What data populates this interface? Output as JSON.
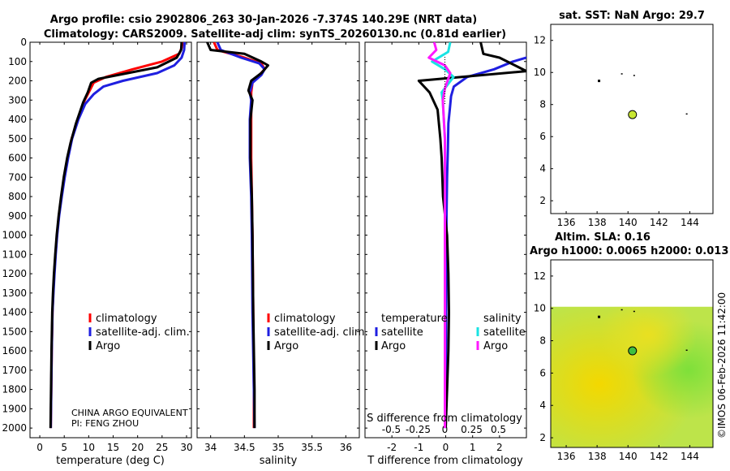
{
  "header": {
    "title_line1": "Argo profile: csio 2902806_263 30-Jan-2026 -7.374S 140.29E (NRT data)",
    "title_line2": "Climatology: CARS2009. Satellite-adj clim: synTS_20260130.nc (0.81d earlier)"
  },
  "credit": "©IMOS 06-Feb-2026 11:42:00",
  "colors": {
    "climatology": "#ff0000",
    "satellite": "#1f1fe0",
    "argo": "#000000",
    "sat_salinity": "#19e3e3",
    "argo_salinity": "#ff19ff"
  },
  "chart_data": [
    {
      "id": "temperature",
      "type": "line",
      "xlabel": "temperature (deg C)",
      "ylabel": "",
      "xlim": [
        -2,
        31
      ],
      "ylim": [
        2050,
        0
      ],
      "xticks": [
        0,
        5,
        10,
        15,
        20,
        25,
        30
      ],
      "yticks": [
        0,
        100,
        200,
        300,
        400,
        500,
        600,
        700,
        800,
        900,
        1000,
        1100,
        1200,
        1300,
        1400,
        1500,
        1600,
        1700,
        1800,
        1900,
        2000
      ],
      "legend": [
        "climatology",
        "satellite-adj. clim.",
        "Argo"
      ],
      "legend_position": "lower-right",
      "note_lines": [
        "CHINA ARGO EQUIVALENT",
        "PI: FENG ZHOU"
      ],
      "series": [
        {
          "name": "climatology",
          "x": [
            29.2,
            29.0,
            28.5,
            25.0,
            19.0,
            13.5,
            11.0,
            10.2,
            9.2,
            7.8,
            6.5,
            5.7,
            5.0,
            4.4,
            3.9,
            3.5,
            3.2,
            2.95,
            2.75,
            2.6,
            2.45,
            2.35,
            2.25
          ],
          "y": [
            0,
            30,
            60,
            100,
            140,
            180,
            210,
            250,
            300,
            400,
            500,
            600,
            700,
            800,
            900,
            1000,
            1100,
            1200,
            1300,
            1400,
            1600,
            1800,
            2000
          ]
        },
        {
          "name": "satellite-adj. clim.",
          "x": [
            29.6,
            29.5,
            29.0,
            27.5,
            24.0,
            17.0,
            13.0,
            11.0,
            9.3,
            7.9,
            6.6,
            5.8,
            5.1,
            4.5,
            3.95,
            3.55,
            3.25,
            3.0,
            2.8,
            2.6,
            2.45,
            2.35,
            2.25
          ],
          "y": [
            0,
            40,
            80,
            120,
            160,
            200,
            230,
            270,
            320,
            400,
            500,
            600,
            700,
            800,
            900,
            1000,
            1100,
            1200,
            1300,
            1400,
            1600,
            1800,
            2000
          ]
        },
        {
          "name": "Argo",
          "x": [
            29.0,
            28.9,
            28.0,
            24.0,
            16.0,
            12.0,
            10.5,
            9.8,
            8.9,
            7.4,
            6.3,
            5.6,
            4.9,
            4.35,
            3.85,
            3.45,
            3.15,
            2.9,
            2.7,
            2.55,
            2.4,
            2.3,
            2.2
          ],
          "y": [
            0,
            40,
            80,
            130,
            170,
            190,
            210,
            260,
            310,
            420,
            520,
            600,
            700,
            800,
            900,
            1000,
            1100,
            1200,
            1300,
            1400,
            1600,
            1800,
            2000
          ]
        }
      ]
    },
    {
      "id": "salinity",
      "type": "line",
      "xlabel": "salinity",
      "xlim": [
        33.8,
        36.2
      ],
      "ylim": [
        2050,
        0
      ],
      "xticks": [
        34,
        34.5,
        35,
        35.5,
        36
      ],
      "xtick_labels": [
        "34",
        "34.5",
        "35",
        "35.5",
        "36"
      ],
      "legend": [
        "climatology",
        "satellite-adj. clim.",
        "Argo"
      ],
      "legend_position": "lower-right",
      "series": [
        {
          "name": "climatology",
          "x": [
            34.05,
            34.1,
            34.5,
            34.75,
            34.8,
            34.72,
            34.62,
            34.6,
            34.6,
            34.6,
            34.6,
            34.61,
            34.62,
            34.63,
            34.64,
            34.64
          ],
          "y": [
            0,
            40,
            80,
            110,
            140,
            170,
            210,
            260,
            300,
            400,
            600,
            800,
            1000,
            1400,
            1800,
            2000
          ]
        },
        {
          "name": "satellite-adj. clim.",
          "x": [
            34.1,
            34.15,
            34.45,
            34.72,
            34.8,
            34.75,
            34.62,
            34.58,
            34.6,
            34.58,
            34.58,
            34.6,
            34.61,
            34.62,
            34.64,
            34.65
          ],
          "y": [
            0,
            40,
            80,
            110,
            140,
            170,
            210,
            260,
            300,
            400,
            600,
            800,
            1000,
            1400,
            1800,
            2000
          ]
        },
        {
          "name": "Argo",
          "x": [
            33.95,
            34.0,
            34.5,
            34.75,
            34.85,
            34.75,
            34.6,
            34.56,
            34.62,
            34.59,
            34.59,
            34.61,
            34.62,
            34.63,
            34.65,
            34.65
          ],
          "y": [
            0,
            40,
            60,
            100,
            120,
            160,
            200,
            250,
            300,
            400,
            600,
            800,
            1000,
            1400,
            1800,
            2000
          ]
        }
      ]
    },
    {
      "id": "differences",
      "type": "line",
      "xlabel": "T difference from climatology",
      "top_label": "S difference from climatology",
      "xlim": [
        -3,
        3
      ],
      "ylim": [
        2050,
        0
      ],
      "xticks": [
        -2,
        -1,
        0,
        1,
        2
      ],
      "top_ticks": [
        -0.5,
        -0.25,
        0,
        0.25,
        0.5
      ],
      "top_tick_labels": [
        "-0.5",
        "-0.25",
        "0",
        "0.25",
        "0.5"
      ],
      "legend_temperature_title": "temperature",
      "legend_salinity_title": "salinity",
      "legend_temperature": [
        "satellite",
        "Argo"
      ],
      "legend_salinity": [
        "satellite",
        "Argo"
      ],
      "series": [
        {
          "name": "T satellite",
          "x": [
            3.2,
            3.0,
            2.5,
            1.8,
            0.8,
            0.3,
            0.2,
            0.15,
            0.1,
            0.08,
            0.05,
            0.03,
            0.02,
            0.01,
            0.0
          ],
          "y": [
            60,
            80,
            100,
            140,
            180,
            230,
            280,
            350,
            420,
            550,
            700,
            900,
            1200,
            1600,
            2000
          ]
        },
        {
          "name": "T Argo",
          "x": [
            1.3,
            1.4,
            2.0,
            3.0,
            -1.0,
            -0.6,
            -0.3,
            -0.2,
            -0.15,
            -0.1,
            0.05,
            0.1,
            0.12,
            0.1,
            0.05,
            0.0
          ],
          "y": [
            0,
            60,
            80,
            150,
            200,
            260,
            350,
            500,
            600,
            800,
            1000,
            1200,
            1400,
            1600,
            1800,
            2000
          ]
        },
        {
          "name": "S satellite",
          "x": [
            0.05,
            0.03,
            -0.12,
            0.0,
            0.08,
            -0.03,
            -0.02,
            0.0,
            0.0,
            0.0,
            0.0
          ],
          "y": [
            0,
            50,
            100,
            140,
            180,
            260,
            300,
            500,
            800,
            1400,
            2000
          ]
        },
        {
          "name": "S Argo",
          "x": [
            -0.1,
            -0.08,
            -0.15,
            0.0,
            0.05,
            0.0,
            -0.02,
            0.0,
            0.0,
            0.0,
            0.0
          ],
          "y": [
            0,
            40,
            80,
            120,
            160,
            240,
            300,
            500,
            800,
            1400,
            2000
          ]
        }
      ]
    },
    {
      "id": "map_sst",
      "type": "scatter",
      "title": "sat. SST: NaN Argo: 29.7",
      "xlim": [
        135,
        145.5
      ],
      "ylim": [
        1.2,
        13
      ],
      "xticks": [
        136,
        138,
        140,
        142,
        144
      ],
      "yticks": [
        2,
        4,
        6,
        8,
        10,
        12
      ],
      "argo_position": [
        140.29,
        7.374
      ]
    },
    {
      "id": "map_sla",
      "type": "heatmap",
      "title_line1": "Altim. SLA: 0.16",
      "title_line2": "Argo h1000: 0.0065 h2000: 0.013",
      "xlim": [
        135,
        145.5
      ],
      "ylim": [
        1.4,
        13
      ],
      "xticks": [
        136,
        138,
        140,
        142,
        144
      ],
      "yticks": [
        2,
        4,
        6,
        8,
        10,
        12
      ],
      "field_lat_max": 10.1,
      "argo_position": [
        140.29,
        7.374
      ]
    }
  ]
}
